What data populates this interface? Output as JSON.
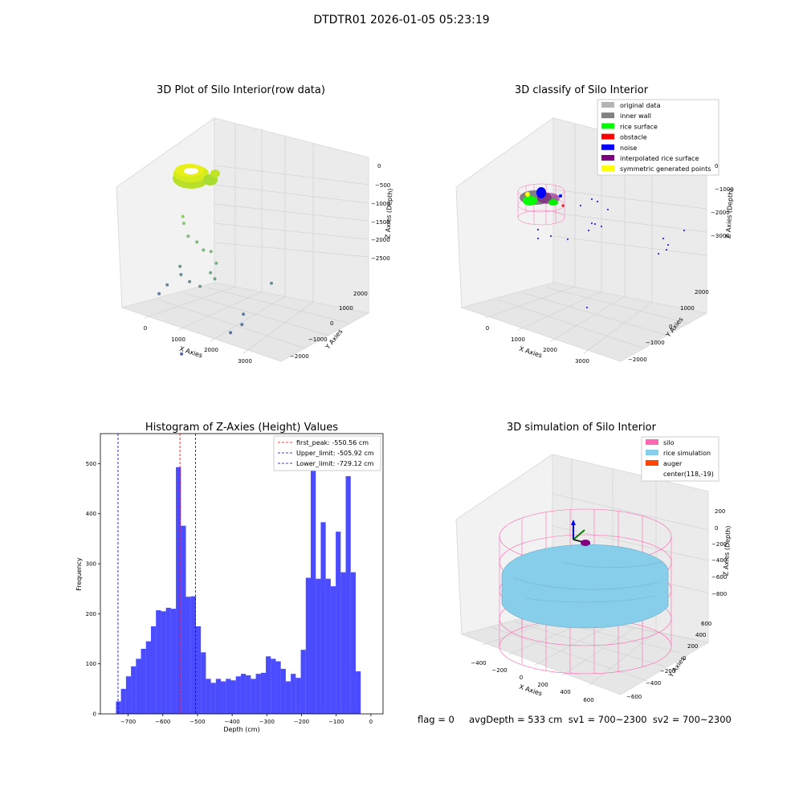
{
  "figure": {
    "title": "DTDTR01 2026-01-05 05:23:19",
    "bottom_text": "flag = 0     avgDepth = 533 cm  sv1 = 700~2300  sv2 = 700~2300"
  },
  "chart_data": [
    {
      "type": "scatter",
      "title": "3D Plot of Silo Interior(row data)",
      "xlabel": "X Axies",
      "ylabel": "Y Axies",
      "zlabel": "Z Axies (Depth)",
      "x_ticks": [
        "0",
        "1000",
        "2000",
        "3000"
      ],
      "y_ticks": [
        "−2000",
        "−1000",
        "0",
        "1000",
        "2000"
      ],
      "z_ticks": [
        "0",
        "−500",
        "−1000",
        "−1500",
        "−2000",
        "−2500"
      ],
      "points": [
        {
          "x": 200,
          "y": 1400,
          "z": -200
        },
        {
          "x": 300,
          "y": 1300,
          "z": -350
        },
        {
          "x": 500,
          "y": 1200,
          "z": -700
        },
        {
          "x": 800,
          "y": 1150,
          "z": -800
        },
        {
          "x": 1100,
          "y": 1000,
          "z": -900
        },
        {
          "x": 1400,
          "y": 900,
          "z": -800
        },
        {
          "x": 1700,
          "y": 700,
          "z": -1000
        },
        {
          "x": 1600,
          "y": 600,
          "z": -1300
        },
        {
          "x": 1800,
          "y": 500,
          "z": -1400
        },
        {
          "x": 1500,
          "y": 300,
          "z": -1600
        },
        {
          "x": 400,
          "y": 1000,
          "z": -1700
        },
        {
          "x": 500,
          "y": 900,
          "z": -1900
        },
        {
          "x": 900,
          "y": 700,
          "z": -1900
        },
        {
          "x": 300,
          "y": 600,
          "z": -2100
        },
        {
          "x": 200,
          "y": 400,
          "z": -2300
        },
        {
          "x": 3000,
          "y": 1200,
          "z": -1800
        },
        {
          "x": 2800,
          "y": 300,
          "z": -2300
        },
        {
          "x": 2900,
          "y": 100,
          "z": -2500
        },
        {
          "x": 2700,
          "y": -100,
          "z": -2700
        },
        {
          "x": 1800,
          "y": -900,
          "z": -3100
        }
      ]
    },
    {
      "type": "scatter",
      "title": "3D classify of Silo Interior",
      "xlabel": "X Axies",
      "ylabel": "Y Axies",
      "zlabel": "Z Axies (Depth)",
      "x_ticks": [
        "0",
        "1000",
        "2000",
        "3000"
      ],
      "y_ticks": [
        "−2000",
        "−1000",
        "0",
        "1000",
        "2000"
      ],
      "z_ticks": [
        "0",
        "−1000",
        "−2000",
        "−3000"
      ],
      "legend": [
        {
          "label": "original data",
          "color": "#b4b4b4"
        },
        {
          "label": "inner wall",
          "color": "#808080"
        },
        {
          "label": "rice surface",
          "color": "#00ff00"
        },
        {
          "label": "obstacle",
          "color": "#ff0000"
        },
        {
          "label": "noise",
          "color": "#0000ff"
        },
        {
          "label": "interpolated rice surface",
          "color": "#800080"
        },
        {
          "label": "symmetric generated points",
          "color": "#ffff00"
        }
      ]
    },
    {
      "type": "bar",
      "title": "Histogram of Z-Axies (Height) Values",
      "xlabel": "Depth (cm)",
      "ylabel": "Frequency",
      "xlim": [
        -780,
        35
      ],
      "ylim": [
        0,
        560
      ],
      "x_ticks": [
        -700,
        -600,
        -500,
        -400,
        -300,
        -200,
        -100,
        0
      ],
      "x_tick_labels": [
        "−700",
        "−600",
        "−500",
        "−400",
        "−300",
        "−200",
        "−100",
        "0"
      ],
      "y_ticks": [
        0,
        100,
        200,
        300,
        400,
        500
      ],
      "bin_start": -735,
      "bin_width": 14.4,
      "bar_color": "#0000ff",
      "values": [
        25,
        50,
        75,
        95,
        110,
        130,
        145,
        175,
        207,
        205,
        212,
        210,
        493,
        376,
        234,
        235,
        175,
        123,
        70,
        62,
        70,
        65,
        70,
        67,
        75,
        80,
        77,
        70,
        80,
        82,
        115,
        110,
        105,
        90,
        65,
        80,
        72,
        128,
        272,
        535,
        270,
        383,
        270,
        255,
        364,
        283,
        475,
        283,
        85
      ],
      "vlines": [
        {
          "label": "first_peak: -550.56 cm",
          "x": -550.56,
          "color": "#ff0000"
        },
        {
          "label": "Upper_limit: -505.92 cm",
          "x": -505.92,
          "color": "#0000aa"
        },
        {
          "label": "Lower_limit: -729.12 cm",
          "x": -729.12,
          "color": "#0000aa"
        }
      ]
    },
    {
      "type": "scatter",
      "title": "3D simulation of Silo Interior",
      "xlabel": "X Axies",
      "ylabel": "Y Axies",
      "zlabel": "Z Axies (Depth)",
      "x_ticks": [
        "−400",
        "−200",
        "0",
        "200",
        "400",
        "600"
      ],
      "y_ticks": [
        "−600",
        "−400",
        "−200",
        "0",
        "200",
        "400",
        "600"
      ],
      "z_ticks": [
        "200",
        "0",
        "−200",
        "−400",
        "−600",
        "−800"
      ],
      "legend": [
        {
          "label": "silo",
          "color": "#ff69b4"
        },
        {
          "label": "rice simulation",
          "color": "#87ceeb"
        },
        {
          "label": "auger",
          "color": "#ff4500"
        },
        {
          "label": "center(118,-19)",
          "color": ""
        }
      ]
    }
  ]
}
